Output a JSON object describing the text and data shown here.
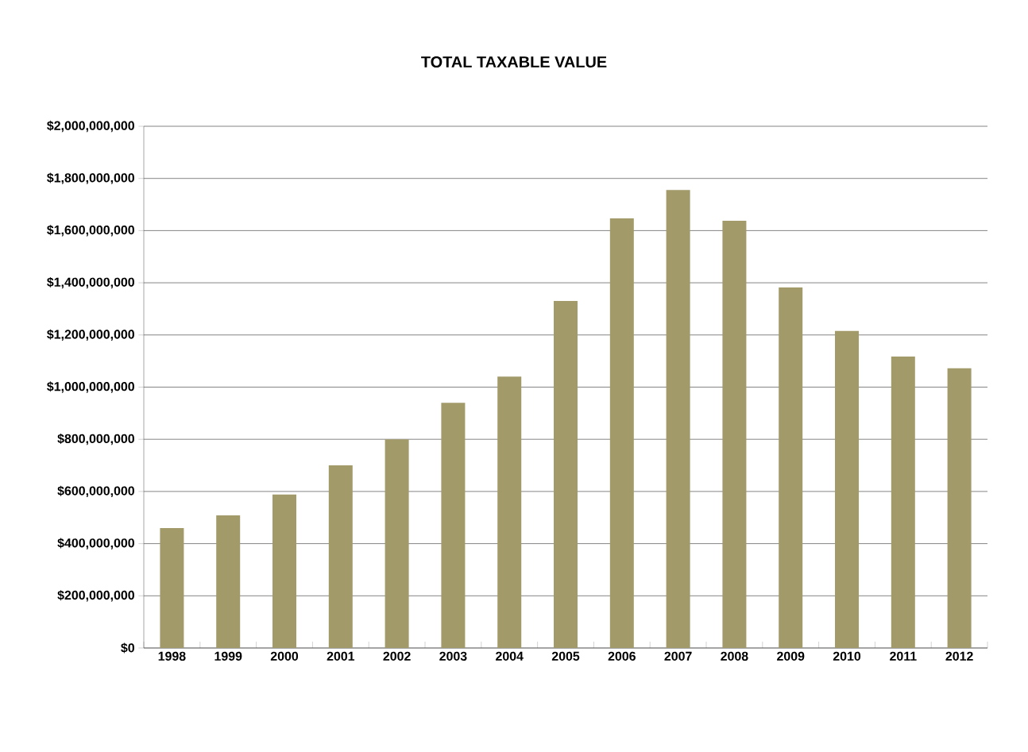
{
  "chart_data": {
    "type": "bar",
    "title": "TOTAL TAXABLE VALUE",
    "categories": [
      "1998",
      "1999",
      "2000",
      "2001",
      "2002",
      "2003",
      "2004",
      "2005",
      "2006",
      "2007",
      "2008",
      "2009",
      "2010",
      "2011",
      "2012"
    ],
    "values": [
      460000000,
      508000000,
      588000000,
      700000000,
      800000000,
      940000000,
      1040000000,
      1330000000,
      1647000000,
      1756000000,
      1638000000,
      1382000000,
      1215000000,
      1117000000,
      1072000000
    ],
    "color": "#a39a6a",
    "ylim": [
      0,
      2000000000
    ],
    "yticks": [
      {
        "value": 0,
        "label": "$0"
      },
      {
        "value": 200000000,
        "label": "$200,000,000"
      },
      {
        "value": 400000000,
        "label": "$400,000,000"
      },
      {
        "value": 600000000,
        "label": "$600,000,000"
      },
      {
        "value": 800000000,
        "label": "$800,000,000"
      },
      {
        "value": 1000000000,
        "label": "$1,000,000,000"
      },
      {
        "value": 1200000000,
        "label": "$1,200,000,000"
      },
      {
        "value": 1400000000,
        "label": "$1,400,000,000"
      },
      {
        "value": 1600000000,
        "label": "$1,600,000,000"
      },
      {
        "value": 1800000000,
        "label": "$1,800,000,000"
      },
      {
        "value": 2000000000,
        "label": "$2,000,000,000"
      }
    ],
    "grid": "y"
  }
}
